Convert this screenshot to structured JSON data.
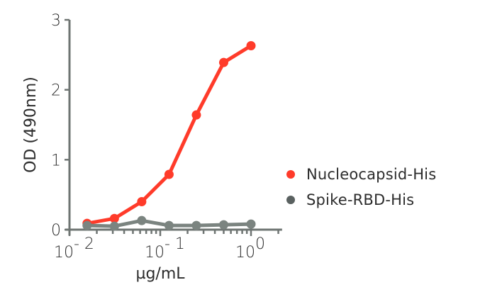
{
  "chart_data": {
    "type": "line",
    "title": "",
    "xlabel": "µg/mL",
    "ylabel": "OD (490nm)",
    "xscale": "log",
    "xlim": [
      0.01,
      2.2
    ],
    "ylim": [
      0,
      3
    ],
    "yticks": [
      "0",
      "1",
      "2",
      "3"
    ],
    "xticks": [
      {
        "base": "10",
        "exp": "-2"
      },
      {
        "base": "10",
        "exp": "-1"
      },
      {
        "base": "10",
        "exp": "0"
      }
    ],
    "grid": false,
    "legend_position": "right",
    "x": [
      0.015625,
      0.03125,
      0.0625,
      0.125,
      0.25,
      0.5,
      1.0
    ],
    "series": [
      {
        "name": "Nucleocapsid-His",
        "color": "#ff3b2a",
        "values": [
          0.09,
          0.16,
          0.4,
          0.79,
          1.64,
          2.39,
          2.63
        ]
      },
      {
        "name": "Spike-RBD-His",
        "color": "#7b8480",
        "legend_color": "#5a6160",
        "values": [
          0.06,
          0.05,
          0.13,
          0.06,
          0.06,
          0.07,
          0.08
        ]
      }
    ]
  },
  "axis_color": "#6e7472"
}
